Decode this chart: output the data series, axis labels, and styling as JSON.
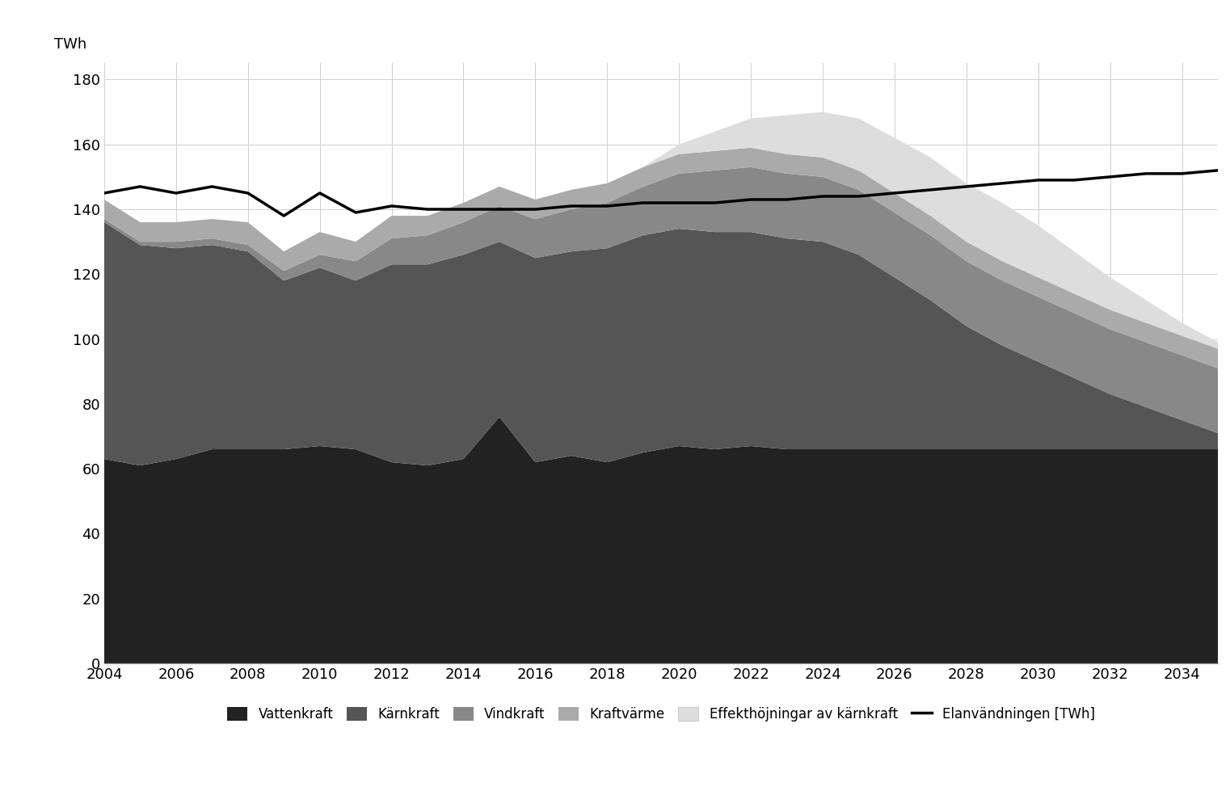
{
  "years": [
    2004,
    2005,
    2006,
    2007,
    2008,
    2009,
    2010,
    2011,
    2012,
    2013,
    2014,
    2015,
    2016,
    2017,
    2018,
    2019,
    2020,
    2021,
    2022,
    2023,
    2024,
    2025,
    2026,
    2027,
    2028,
    2029,
    2030,
    2031,
    2032,
    2033,
    2034,
    2035
  ],
  "vattenkraft": [
    63,
    61,
    63,
    66,
    66,
    66,
    67,
    66,
    62,
    61,
    63,
    76,
    62,
    64,
    62,
    65,
    67,
    66,
    67,
    66,
    66,
    66,
    66,
    66,
    66,
    66,
    66,
    66,
    66,
    66,
    66,
    66
  ],
  "karnkraft": [
    73,
    68,
    65,
    63,
    61,
    52,
    55,
    52,
    61,
    62,
    63,
    54,
    63,
    63,
    66,
    67,
    67,
    67,
    66,
    65,
    64,
    60,
    53,
    46,
    38,
    32,
    27,
    22,
    17,
    13,
    9,
    5
  ],
  "vindkraft": [
    1,
    1,
    2,
    2,
    2,
    3,
    4,
    6,
    8,
    9,
    10,
    11,
    12,
    13,
    14,
    15,
    17,
    19,
    20,
    20,
    20,
    20,
    20,
    20,
    20,
    20,
    20,
    20,
    20,
    20,
    20,
    20
  ],
  "kraftvarme": [
    6,
    6,
    6,
    6,
    7,
    6,
    7,
    6,
    7,
    6,
    6,
    6,
    6,
    6,
    6,
    6,
    6,
    6,
    6,
    6,
    6,
    6,
    6,
    6,
    6,
    6,
    6,
    6,
    6,
    6,
    6,
    6
  ],
  "effekthoejningar": [
    0,
    0,
    0,
    0,
    0,
    0,
    0,
    0,
    0,
    0,
    0,
    0,
    0,
    0,
    0,
    0,
    3,
    6,
    9,
    12,
    14,
    16,
    17,
    18,
    18,
    18,
    16,
    13,
    10,
    7,
    4,
    2
  ],
  "elanvandningen": [
    145,
    147,
    145,
    147,
    145,
    138,
    145,
    139,
    141,
    140,
    140,
    140,
    140,
    141,
    141,
    142,
    142,
    142,
    143,
    143,
    144,
    144,
    145,
    146,
    147,
    148,
    149,
    149,
    150,
    151,
    151,
    152
  ],
  "colors": {
    "vattenkraft": "#222222",
    "karnkraft": "#555555",
    "vindkraft": "#888888",
    "kraftvarme": "#aaaaaa",
    "effekthoejningar": "#dddddd",
    "elanvandningen": "#000000"
  },
  "ylim": [
    0,
    185
  ],
  "yticks": [
    0,
    20,
    40,
    60,
    80,
    100,
    120,
    140,
    160,
    180
  ],
  "ylabel": "TWh",
  "legend_labels": [
    "Vattenkraft",
    "Kärnkraft",
    "Vindkraft",
    "Kraftvärme",
    "Effekthöjningar av kärnkraft",
    "Elanvändningen [TWh]"
  ],
  "background_color": "#ffffff",
  "grid_color": "#d0d0d0"
}
